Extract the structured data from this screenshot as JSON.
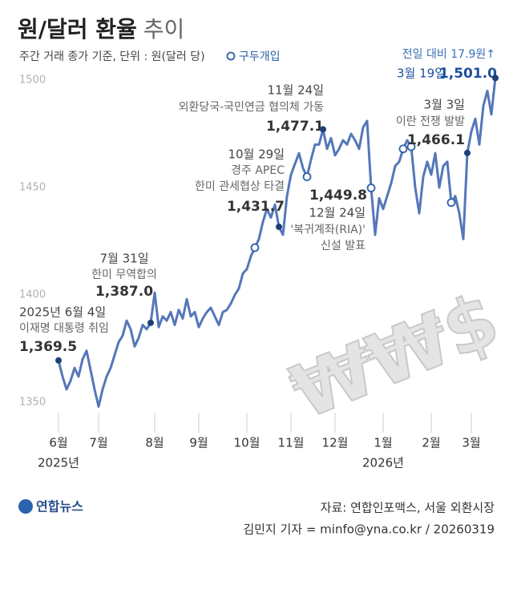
{
  "chart_data": {
    "type": "line",
    "title": "원/달러 환율",
    "title_suffix": "추이",
    "subtitle": "주간 거래 종가 기준, 단위 : 원(달러 당)",
    "categories": [
      "6월",
      null,
      null,
      null,
      null,
      null,
      null,
      null,
      null,
      null,
      "7월",
      null,
      null,
      null,
      null,
      null,
      null,
      null,
      null,
      null,
      null,
      null,
      null,
      null,
      "8월",
      null,
      null,
      null,
      null,
      null,
      null,
      null,
      null,
      null,
      null,
      "9월",
      null,
      null,
      null,
      null,
      null,
      null,
      null,
      null,
      null,
      null,
      null,
      "10월",
      null,
      null,
      null,
      null,
      null,
      null,
      null,
      null,
      null,
      null,
      "11월",
      null,
      null,
      null,
      null,
      null,
      null,
      null,
      null,
      null,
      null,
      "12월",
      null,
      null,
      null,
      null,
      null,
      null,
      null,
      null,
      null,
      null,
      null,
      "1월",
      null,
      null,
      null,
      null,
      null,
      null,
      null,
      null,
      null,
      null,
      null,
      "2월",
      null,
      null,
      null,
      null,
      null,
      null,
      null,
      null,
      null,
      "3월",
      null,
      null,
      null,
      null,
      null,
      null
    ],
    "year_labels": [
      "2025년",
      "2026년"
    ],
    "series": [
      {
        "name": "원/달러 환율",
        "color": "#5577b9",
        "values": [
          1369.5,
          1362,
          1356,
          1360,
          1366,
          1362,
          1370,
          1374,
          1365,
          1356,
          1348,
          1356,
          1362,
          1366,
          1372,
          1378,
          1381,
          1388,
          1384,
          1376,
          1380,
          1386,
          1384,
          1387.0,
          1401,
          1385,
          1390,
          1388,
          1392,
          1386,
          1393,
          1389,
          1398,
          1390,
          1392,
          1385,
          1389,
          1392,
          1394,
          1390,
          1386,
          1392,
          1393,
          1396,
          1400,
          1403,
          1410,
          1412,
          1418,
          1422,
          1426,
          1434,
          1440,
          1436,
          1442,
          1431.7,
          1428,
          1446,
          1456,
          1461,
          1466,
          1459,
          1455,
          1463,
          1470,
          1470,
          1477.1,
          1468,
          1473,
          1465,
          1468,
          1472,
          1470,
          1475,
          1472,
          1468,
          1478,
          1481,
          1449.8,
          1428,
          1445,
          1440,
          1446,
          1452,
          1460,
          1462,
          1468,
          1472,
          1469,
          1450,
          1438,
          1455,
          1462,
          1456,
          1466,
          1450,
          1460,
          1462,
          1443,
          1446,
          1438,
          1426,
          1466.1,
          1476,
          1482,
          1470,
          1488,
          1495,
          1484,
          1501.0
        ],
        "value_labels": [
          "1,369.5",
          null,
          null,
          null,
          null,
          null,
          null,
          null,
          null,
          null,
          null,
          null,
          null,
          null,
          null,
          null,
          null,
          null,
          null,
          null,
          null,
          null,
          null,
          "1,387.0",
          null,
          null,
          null,
          null,
          null,
          null,
          null,
          null,
          null,
          null,
          null,
          null,
          null,
          null,
          null,
          null,
          null,
          null,
          null,
          null,
          null,
          null,
          null,
          null,
          null,
          null,
          null,
          null,
          null,
          null,
          null,
          "1,431.7",
          null,
          null,
          null,
          null,
          null,
          null,
          null,
          null,
          null,
          null,
          "1,477.1",
          null,
          null,
          null,
          null,
          null,
          null,
          null,
          null,
          null,
          null,
          null,
          "1,449.8",
          null,
          null,
          null,
          null,
          null,
          null,
          null,
          null,
          null,
          null,
          null,
          null,
          null,
          null,
          null,
          null,
          null,
          null,
          null,
          null,
          null,
          null,
          null,
          "1,466.1",
          null,
          null,
          null,
          null,
          null,
          null,
          "1,501.0"
        ]
      },
      {
        "name": "구두개입",
        "color": "#2d5fa8",
        "values": [
          null,
          null,
          null,
          null,
          null,
          null,
          null,
          null,
          null,
          null,
          null,
          null,
          null,
          null,
          null,
          null,
          null,
          null,
          null,
          null,
          null,
          null,
          null,
          null,
          null,
          null,
          null,
          null,
          null,
          null,
          null,
          null,
          null,
          null,
          null,
          null,
          null,
          null,
          null,
          null,
          null,
          null,
          null,
          null,
          null,
          null,
          null,
          null,
          null,
          1422,
          null,
          null,
          null,
          null,
          null,
          null,
          null,
          null,
          null,
          null,
          null,
          null,
          1455,
          null,
          null,
          null,
          null,
          null,
          null,
          null,
          null,
          null,
          null,
          null,
          null,
          null,
          null,
          null,
          1449.8,
          null,
          null,
          null,
          null,
          null,
          null,
          null,
          1468,
          null,
          1469,
          null,
          null,
          null,
          null,
          null,
          null,
          null,
          null,
          null,
          1443,
          null,
          null,
          null,
          null,
          null,
          null,
          null,
          null,
          null,
          null,
          null
        ]
      }
    ],
    "annotations": [
      {
        "date": "2025년 6월 4일",
        "lines": [
          "이재명 대통령 취임"
        ]
      },
      {
        "date": "7월 31일",
        "lines": [
          "한미 무역합의"
        ]
      },
      {
        "date": "10월 29일",
        "lines": [
          "경주 APEC",
          "한미 관세협상 타결"
        ]
      },
      {
        "date": "11월 24일",
        "lines": [
          "외환당국-국민연금 협의체 가동"
        ]
      },
      {
        "date": "12월 24일",
        "lines": [
          "'복귀계좌(RIA)'",
          "신설 발표"
        ]
      },
      {
        "date": "3월 3일",
        "lines": [
          "이란 전쟁 발발"
        ]
      },
      {
        "date": "3월 19일",
        "lines": [
          "전일 대비 17.9원↑"
        ]
      }
    ],
    "ylim": [
      1350,
      1500
    ],
    "yticks": [
      1350,
      1400,
      1450,
      1500
    ],
    "grid": false,
    "legend": "top",
    "illustration_text": "₩₩$",
    "logo": "연합뉴스",
    "source": "자료: 연합인포맥스, 서울 외환시장",
    "credit": "김민지 기자 = minfo@yna.co.kr / 20260319"
  }
}
